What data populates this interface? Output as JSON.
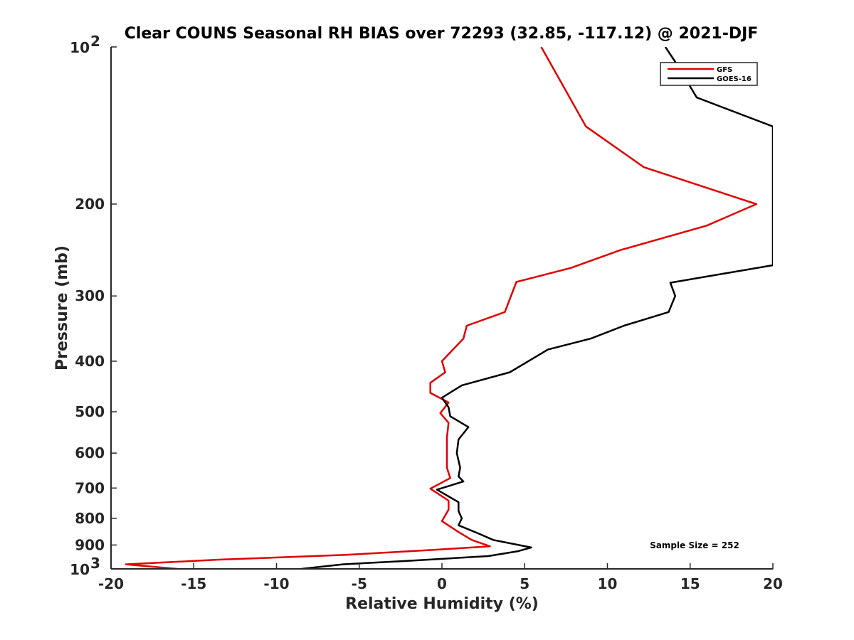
{
  "chart_data": {
    "type": "line",
    "title": "Clear COUNS Seasonal RH BIAS over 72293 (32.85, -117.12) @ 2021-DJF",
    "xlabel": "Relative Humidity (%)",
    "ylabel": "Pressure (mb)",
    "xlim": [
      -20,
      20
    ],
    "ylim": [
      100,
      1000
    ],
    "y_scale": "log",
    "y_reversed": true,
    "x_ticks": [
      -20,
      -15,
      -10,
      -5,
      0,
      5,
      10,
      15,
      20
    ],
    "y_ticks": [
      {
        "value": 100,
        "base": "10",
        "exp": "2"
      },
      {
        "value": 200,
        "label": "200"
      },
      {
        "value": 300,
        "label": "300"
      },
      {
        "value": 400,
        "label": "400"
      },
      {
        "value": 500,
        "label": "500"
      },
      {
        "value": 600,
        "label": "600"
      },
      {
        "value": 700,
        "label": "700"
      },
      {
        "value": 800,
        "label": "800"
      },
      {
        "value": 900,
        "label": "900"
      },
      {
        "value": 1000,
        "base": "10",
        "exp": "3"
      }
    ],
    "legend_position": "top-right",
    "annotation": "Sample Size = 252",
    "series": [
      {
        "name": "GFS",
        "color": "#e00000",
        "points": [
          [
            6.0,
            100
          ],
          [
            8.7,
            142
          ],
          [
            12.2,
            170
          ],
          [
            19.0,
            200
          ],
          [
            16.0,
            220
          ],
          [
            10.8,
            245
          ],
          [
            7.8,
            265
          ],
          [
            4.5,
            282
          ],
          [
            3.8,
            322
          ],
          [
            1.5,
            342
          ],
          [
            1.3,
            362
          ],
          [
            0.0,
            400
          ],
          [
            0.2,
            420
          ],
          [
            -0.7,
            440
          ],
          [
            -0.7,
            460
          ],
          [
            0.4,
            480
          ],
          [
            -0.1,
            503
          ],
          [
            0.4,
            525
          ],
          [
            0.3,
            560
          ],
          [
            0.3,
            600
          ],
          [
            0.3,
            640
          ],
          [
            0.5,
            670
          ],
          [
            -0.7,
            702
          ],
          [
            0.4,
            740
          ],
          [
            0.4,
            770
          ],
          [
            0.0,
            810
          ],
          [
            1.0,
            850
          ],
          [
            1.8,
            880
          ],
          [
            2.9,
            905
          ],
          [
            -0.6,
            920
          ],
          [
            -5.8,
            940
          ],
          [
            -13.5,
            960
          ],
          [
            -19.1,
            980
          ],
          [
            -16.0,
            1000
          ]
        ]
      },
      {
        "name": "GOES-16",
        "color": "#000000",
        "points": [
          [
            13.5,
            100
          ],
          [
            14.2,
            108
          ],
          [
            15.4,
            125
          ],
          [
            20.0,
            142
          ],
          [
            20.0,
            262
          ],
          [
            13.8,
            283
          ],
          [
            14.1,
            300
          ],
          [
            13.7,
            322
          ],
          [
            11.0,
            342
          ],
          [
            9.0,
            362
          ],
          [
            6.4,
            380
          ],
          [
            4.1,
            420
          ],
          [
            1.2,
            445
          ],
          [
            0.0,
            470
          ],
          [
            0.4,
            490
          ],
          [
            0.5,
            510
          ],
          [
            1.6,
            535
          ],
          [
            1.0,
            565
          ],
          [
            0.9,
            600
          ],
          [
            1.1,
            640
          ],
          [
            1.0,
            665
          ],
          [
            1.3,
            680
          ],
          [
            -0.3,
            705
          ],
          [
            1.0,
            745
          ],
          [
            1.0,
            775
          ],
          [
            1.2,
            800
          ],
          [
            1.0,
            825
          ],
          [
            2.2,
            855
          ],
          [
            3.1,
            880
          ],
          [
            5.4,
            910
          ],
          [
            4.6,
            925
          ],
          [
            2.8,
            945
          ],
          [
            -2.0,
            965
          ],
          [
            -6.0,
            980
          ],
          [
            -8.5,
            1000
          ]
        ]
      }
    ]
  }
}
